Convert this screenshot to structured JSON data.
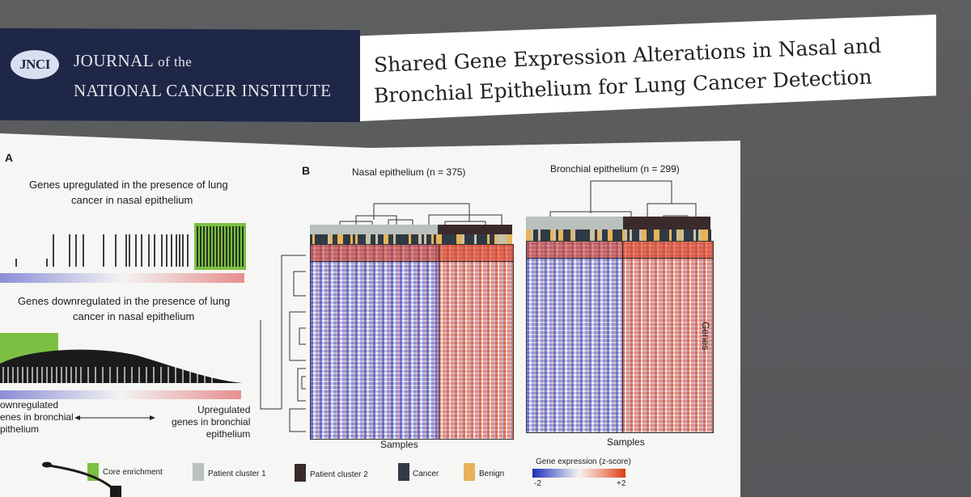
{
  "header": {
    "logo_text": "JNCI",
    "journal_line1_a": "JOURNAL",
    "journal_line1_b": "of the",
    "journal_line2": "NATIONAL CANCER INSTITUTE",
    "title_line1": "Shared Gene Expression Alterations in Nasal and",
    "title_line2": "Bronchial Epithelium for Lung Cancer Detection"
  },
  "panel_a": {
    "label": "A",
    "up_line1": "Genes upregulated in the presence of lung",
    "up_line2": "cancer in nasal epithelium",
    "down_line1": "Genes downregulated in the presence of lung",
    "down_line2": "cancer in nasal epithelium",
    "left_axis_1": "ownregulated",
    "left_axis_2": "enes in bronchial",
    "left_axis_3": "pithelium",
    "right_axis_1": "Upregulated",
    "right_axis_2": "genes in bronchial",
    "right_axis_3": "epithelium"
  },
  "panel_b": {
    "label": "B",
    "nasal_title": "Nasal epithelium (n = 375)",
    "bronchial_title": "Bronchial epithelium (n = 299)",
    "samples_label": "Samples",
    "genes_label": "Genes"
  },
  "legend": {
    "core": "Core enrichment",
    "pc1": "Patient cluster 1",
    "pc2": "Patient cluster 2",
    "cancer": "Cancer",
    "benign": "Benign",
    "gradient_title": "Gene expression (z-score)",
    "min": "-2",
    "max": "+2"
  },
  "colors": {
    "navy": "#1f2748",
    "core_green": "#7cc043",
    "cluster1": "#b9c0bd",
    "cluster2": "#3a2a2c",
    "cancer": "#2f3a45",
    "benign": "#e7b35a",
    "heat_blue": "#2430b5",
    "heat_red": "#d93a1c"
  }
}
